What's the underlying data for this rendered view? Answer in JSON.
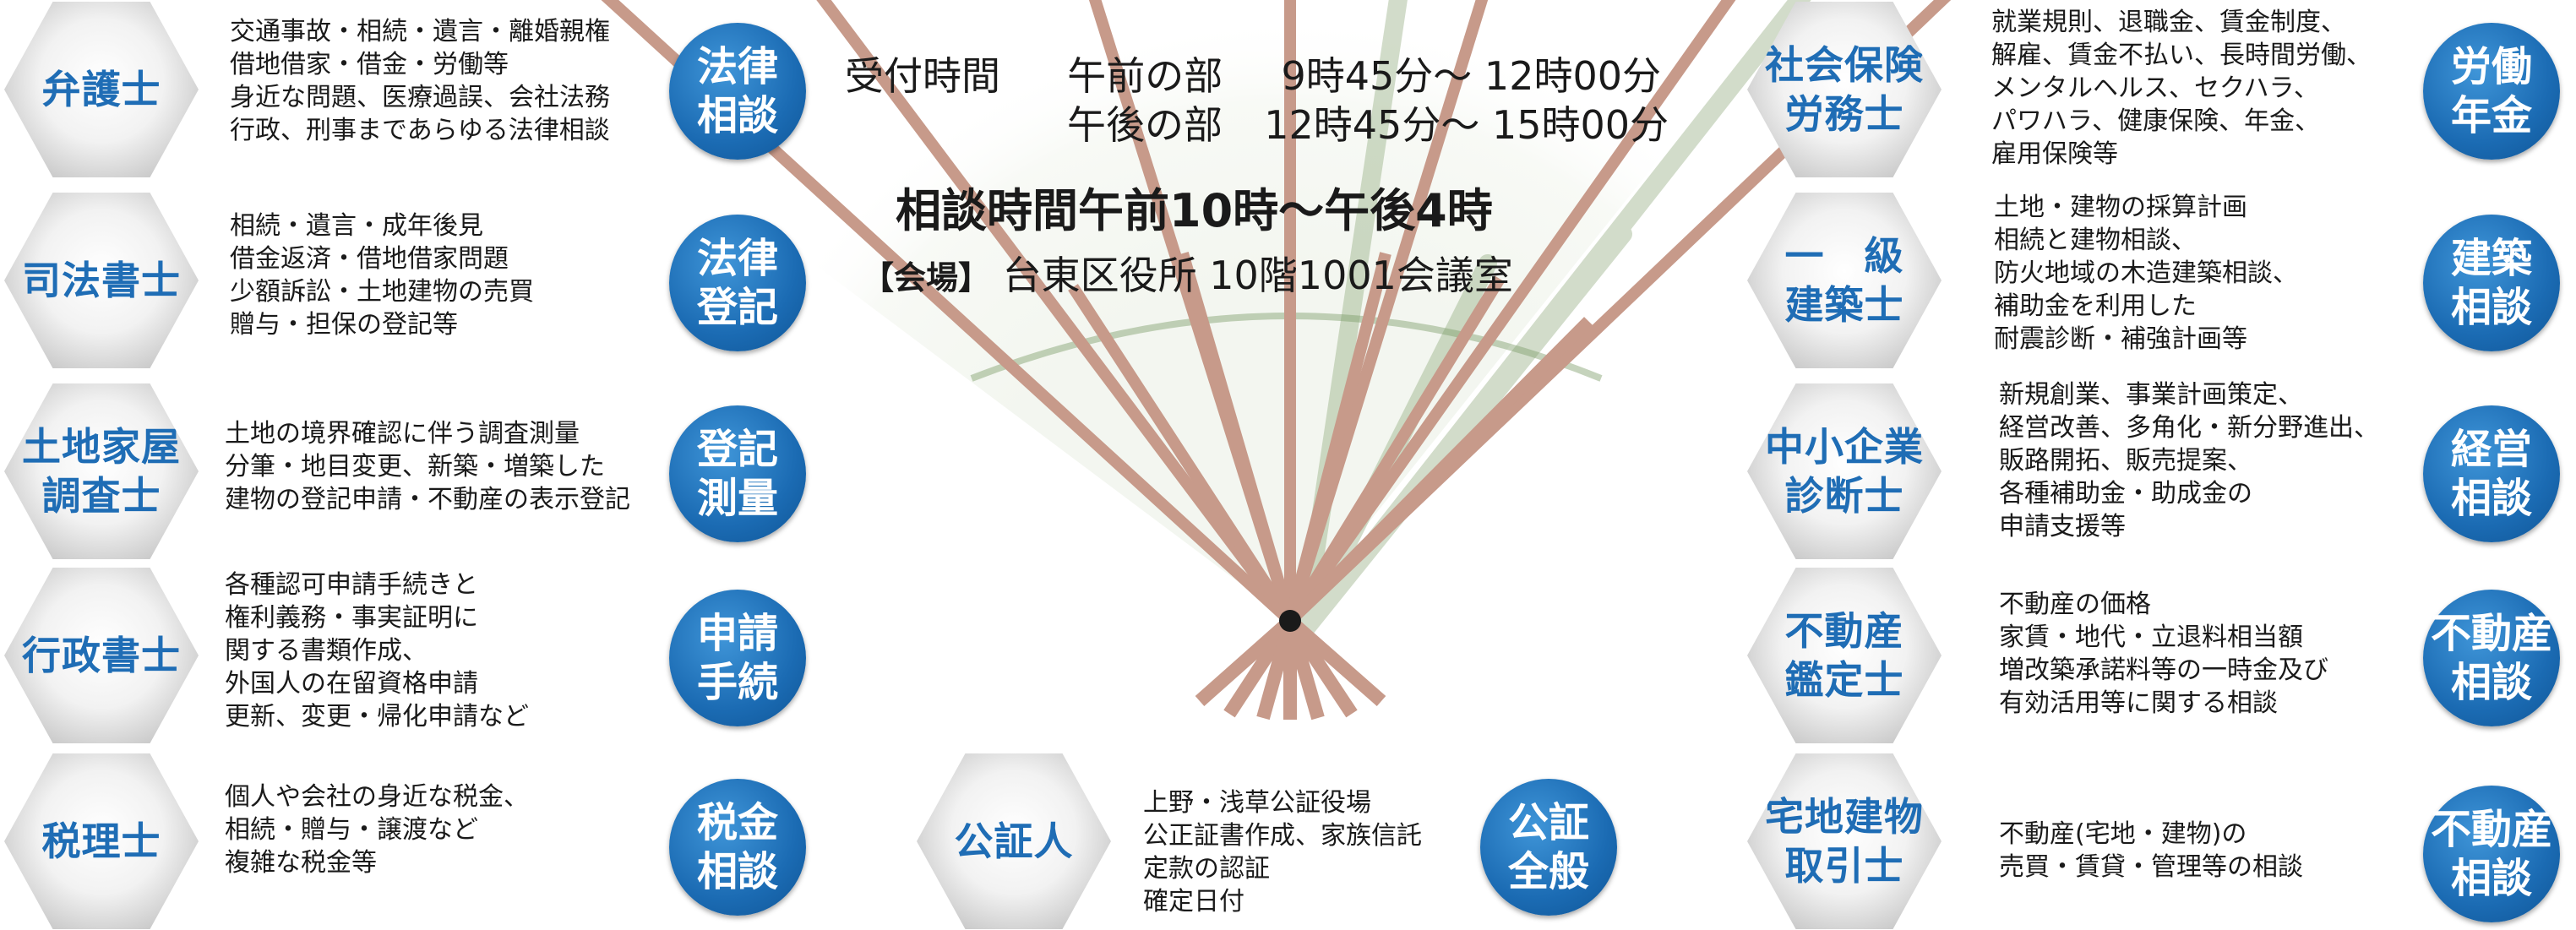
{
  "reception": {
    "label": "受付時間",
    "am_label": "午前の部",
    "am_time": "9時45分〜 12時00分",
    "pm_label": "午後の部",
    "pm_time": "12時45分〜 15時00分"
  },
  "consult_hours": "相談時間午前10時〜午後4時",
  "venue": {
    "label": "【会場】",
    "place": "台東区役所 10階1001会議室"
  },
  "professions": {
    "bengoshi": {
      "name": [
        "弁護士"
      ],
      "category": [
        "法律",
        "相談"
      ],
      "lines": [
        "交通事故・相続・遺言・離婚親権",
        "借地借家・借金・労働等",
        "身近な問題、医療過誤、会社法務",
        "行政、刑事まであらゆる法律相談"
      ]
    },
    "shiho": {
      "name": [
        "司法書士"
      ],
      "category": [
        "法律",
        "登記"
      ],
      "lines": [
        "相続・遺言・成年後見",
        "借金返済・借地借家問題",
        "少額訴訟・土地建物の売買",
        "贈与・担保の登記等"
      ]
    },
    "tochi": {
      "name": [
        "土地家屋",
        "調査士"
      ],
      "category": [
        "登記",
        "測量"
      ],
      "lines": [
        "土地の境界確認に伴う調査測量",
        "分筆・地目変更、新築・増築した",
        "建物の登記申請・不動産の表示登記"
      ]
    },
    "gyosei": {
      "name": [
        "行政書士"
      ],
      "category": [
        "申請",
        "手続"
      ],
      "lines": [
        "各種認可申請手続きと",
        "権利義務・事実証明に",
        "関する書類作成、",
        "外国人の在留資格申請",
        "更新、変更・帰化申請など"
      ]
    },
    "zeiri": {
      "name": [
        "税理士"
      ],
      "category": [
        "税金",
        "相談"
      ],
      "lines": [
        "個人や会社の身近な税金、",
        "相続・贈与・譲渡など",
        "複雑な税金等"
      ]
    },
    "kosho": {
      "name": [
        "公証人"
      ],
      "category": [
        "公証",
        "全般"
      ],
      "lines": [
        "上野・浅草公証役場",
        "公正証書作成、家族信託",
        "定款の認証",
        "確定日付"
      ]
    },
    "sharoshi": {
      "name": [
        "社会保険",
        "労務士"
      ],
      "category": [
        "労働",
        "年金"
      ],
      "lines": [
        "就業規則、退職金、賃金制度、",
        "解雇、賃金不払い、長時間労働、",
        "メンタルヘルス、セクハラ、",
        "パワハラ、健康保険、年金、",
        "雇用保険等"
      ]
    },
    "kenchiku": {
      "name": [
        "一　級",
        "建築士"
      ],
      "category": [
        "建築",
        "相談"
      ],
      "lines": [
        "土地・建物の採算計画",
        "相続と建物相談、",
        "防火地域の木造建築相談、",
        "補助金を利用した",
        "耐震診断・補強計画等"
      ]
    },
    "shindan": {
      "name": [
        "中小企業",
        "診断士"
      ],
      "category": [
        "経営",
        "相談"
      ],
      "lines": [
        "新規創業、事業計画策定、",
        "経営改善、多角化・新分野進出、",
        "販路開拓、販売提案、",
        "各種補助金・助成金の",
        "申請支援等"
      ]
    },
    "kanteishi": {
      "name": [
        "不動産",
        "鑑定士"
      ],
      "category": [
        "不動産",
        "相談"
      ],
      "lines": [
        "不動産の価格",
        "家賃・地代・立退料相当額",
        "増改築承諾料等の一時金及び",
        "有効活用等に関する相談"
      ]
    },
    "takken": {
      "name": [
        "宅地建物",
        "取引士"
      ],
      "category": [
        "不動産",
        "相談"
      ],
      "lines": [
        "不動産(宅地・建物)の",
        "売買・賃貸・管理等の相談"
      ]
    }
  },
  "colors": {
    "accent_blue": "#1b6bb3",
    "fan_rib": "#c79a8a",
    "fan_shadow": "#7f9e6a"
  }
}
